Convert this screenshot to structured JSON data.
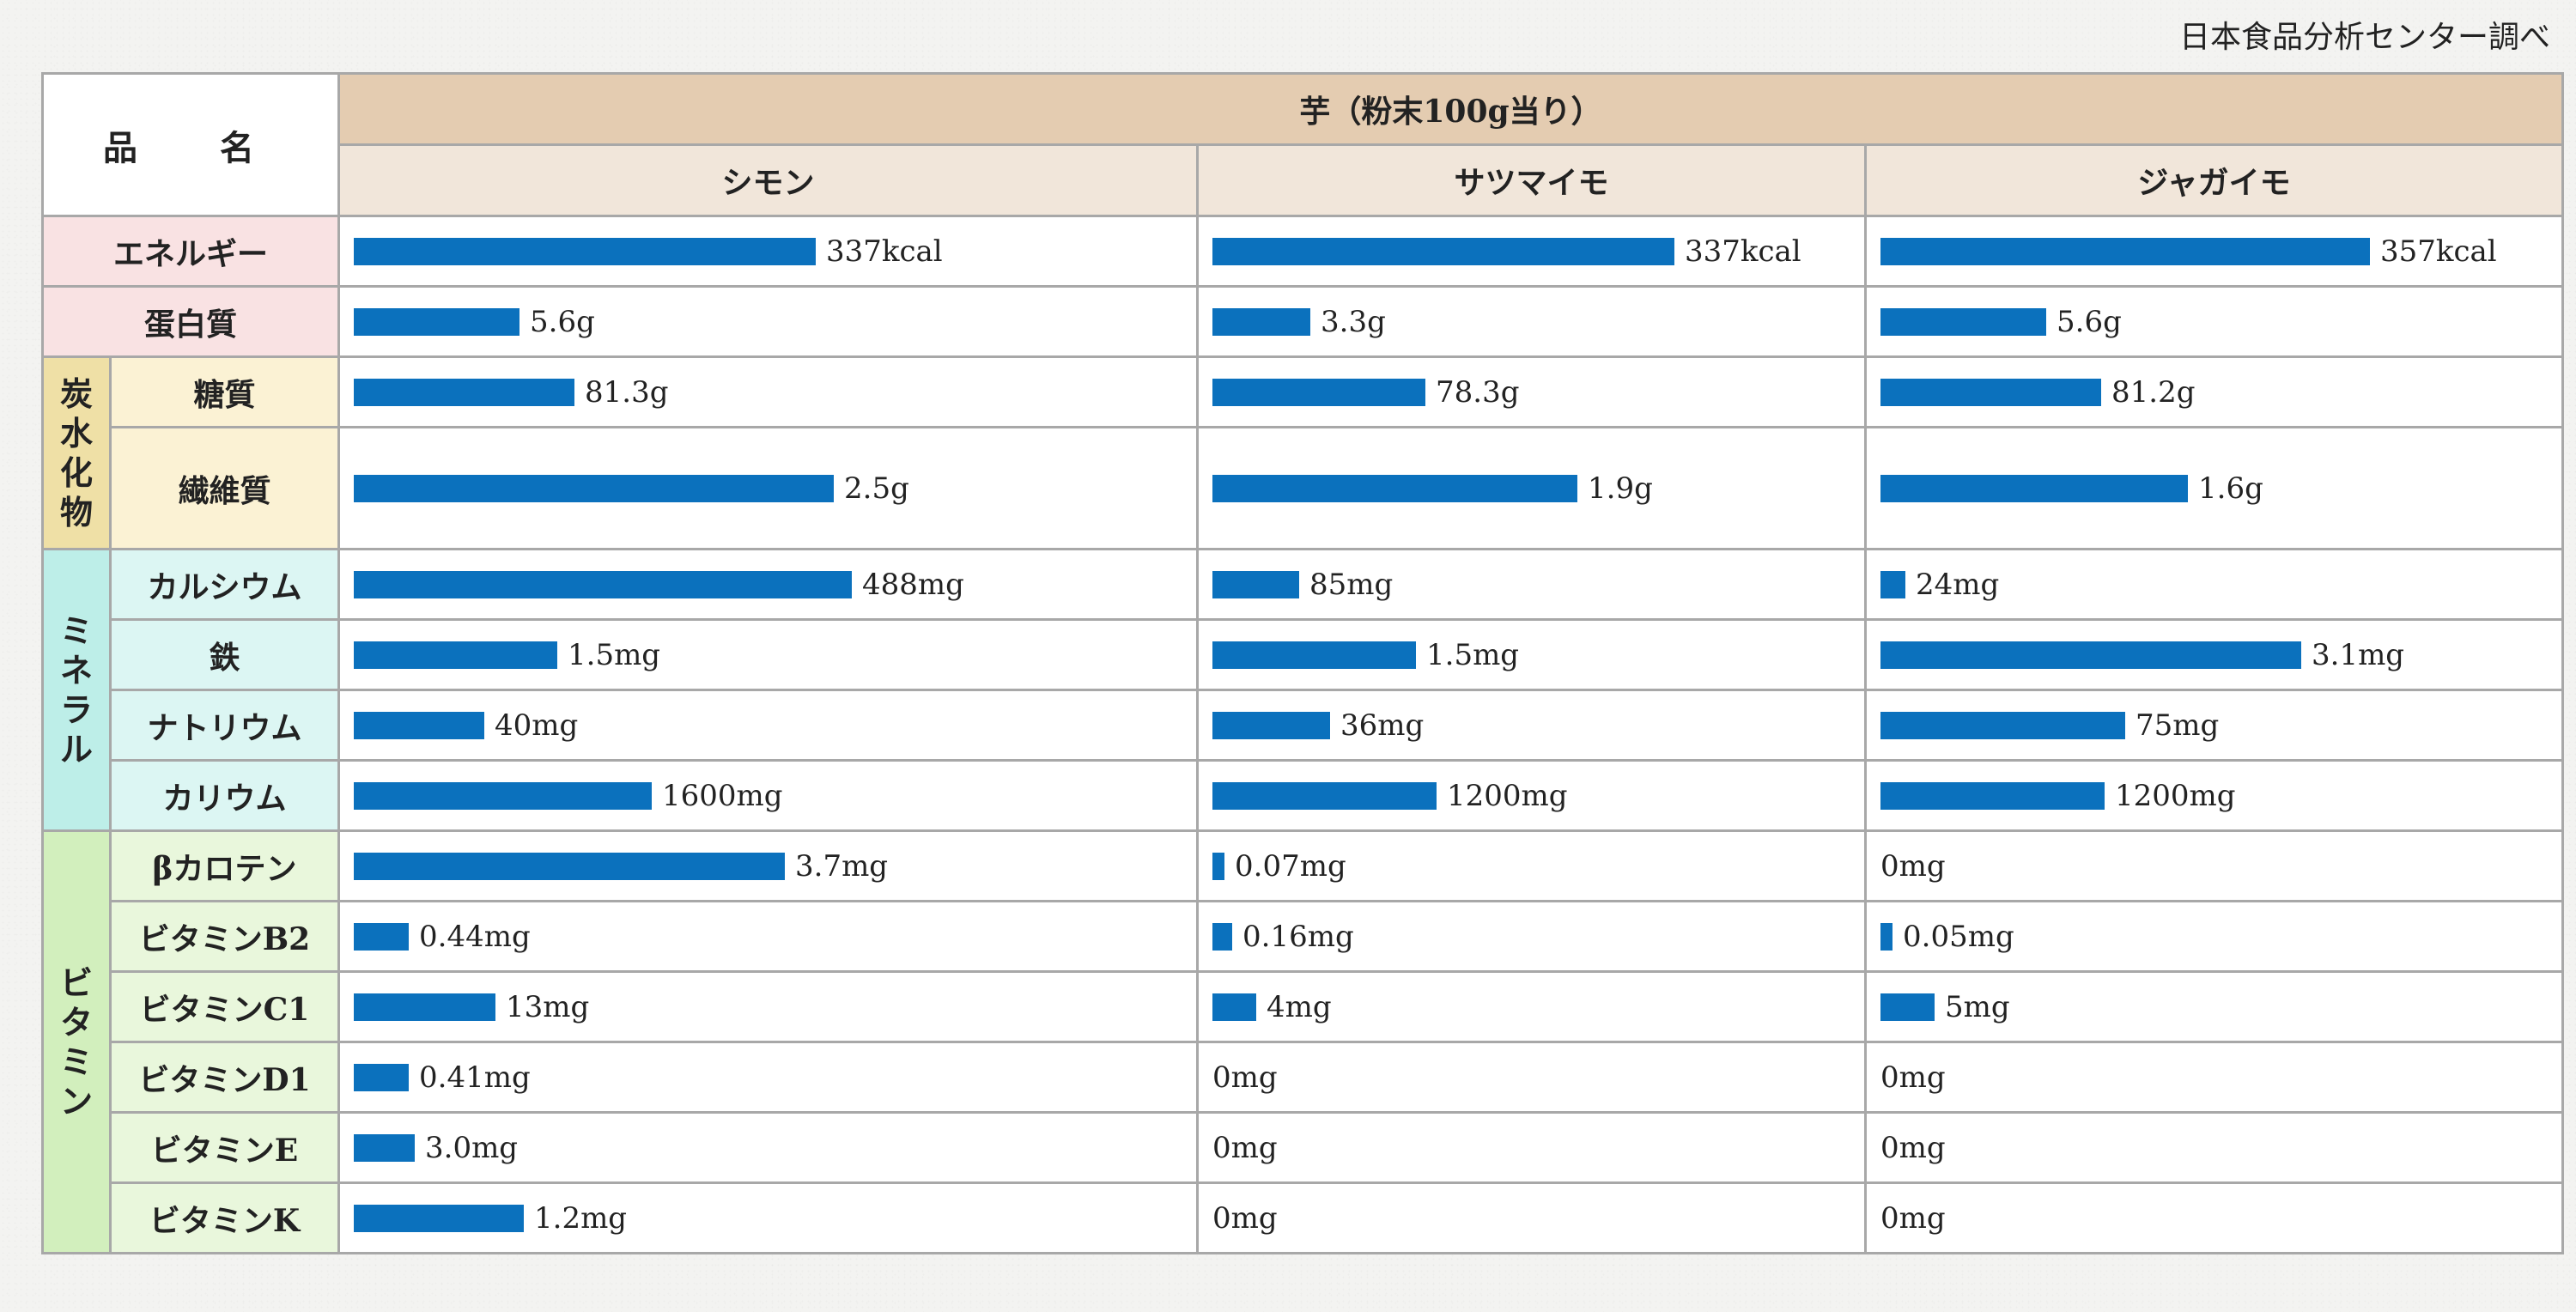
{
  "source_note": "日本食品分析センター調べ",
  "header": {
    "item_label": "品　名",
    "main_label": "芋（粉末100g当り）"
  },
  "colors": {
    "bar": "#0b71bd",
    "header_main": "#e4ccb1",
    "header_sub": "#f1e6da",
    "pink": "#f9e2e3",
    "yellow": "#fbf2d4",
    "cyan": "#dcf6f3",
    "green": "#e9f7dc"
  },
  "chart_data": {
    "type": "bar",
    "title": "芋（粉末100g当り）",
    "series": [
      {
        "name": "シモン"
      },
      {
        "name": "サツマイモ"
      },
      {
        "name": "ジャガイモ"
      }
    ],
    "groups": [
      {
        "name": "",
        "color": "pink",
        "rows": [
          {
            "label": "エネルギー",
            "values": [
              337,
              337,
              357
            ],
            "texts": [
              "337kcal",
              "337kcal",
              "357kcal"
            ]
          },
          {
            "label": "蛋白質",
            "values": [
              5.6,
              3.3,
              5.6
            ],
            "texts": [
              "5.6g",
              "3.3g",
              "5.6g"
            ]
          }
        ]
      },
      {
        "name": "炭水化物",
        "color": "yellow",
        "rows": [
          {
            "label": "糖質",
            "values": [
              81.3,
              78.3,
              81.2
            ],
            "texts": [
              "81.3g",
              "78.3g",
              "81.2g"
            ]
          },
          {
            "label": "繊維質",
            "values": [
              2.5,
              1.9,
              1.6
            ],
            "texts": [
              "2.5g",
              "1.9g",
              "1.6g"
            ]
          }
        ]
      },
      {
        "name": "ミネラル",
        "color": "cyan",
        "rows": [
          {
            "label": "カルシウム",
            "values": [
              488,
              85,
              24
            ],
            "texts": [
              "488mg",
              "85mg",
              "24mg"
            ]
          },
          {
            "label": "鉄",
            "values": [
              1.5,
              1.5,
              3.1
            ],
            "texts": [
              "1.5mg",
              "1.5mg",
              "3.1mg"
            ]
          },
          {
            "label": "ナトリウム",
            "values": [
              40,
              36,
              75
            ],
            "texts": [
              "40mg",
              "36mg",
              "75mg"
            ]
          },
          {
            "label": "カリウム",
            "values": [
              1600,
              1200,
              1200
            ],
            "texts": [
              "1600mg",
              "1200mg",
              "1200mg"
            ]
          }
        ]
      },
      {
        "name": "ビタミン",
        "color": "green",
        "rows": [
          {
            "label": "βカロテン",
            "values": [
              3.7,
              0.07,
              0
            ],
            "texts": [
              "3.7mg",
              "0.07mg",
              "0mg"
            ]
          },
          {
            "label": "ビタミンB2",
            "values": [
              0.44,
              0.16,
              0.05
            ],
            "texts": [
              "0.44mg",
              "0.16mg",
              "0.05mg"
            ]
          },
          {
            "label": "ビタミンC1",
            "values": [
              13,
              4,
              5
            ],
            "texts": [
              "13mg",
              "4mg",
              "5mg"
            ]
          },
          {
            "label": "ビタミンD1",
            "values": [
              0.41,
              0,
              0
            ],
            "texts": [
              "0.41mg",
              "0mg",
              "0mg"
            ]
          },
          {
            "label": "ビタミンE",
            "values": [
              3.0,
              0,
              0
            ],
            "texts": [
              "3.0mg",
              "0mg",
              "0mg"
            ]
          },
          {
            "label": "ビタミンK",
            "values": [
              1.2,
              0,
              0
            ],
            "texts": [
              "1.2mg",
              "0mg",
              "0mg"
            ]
          }
        ]
      }
    ]
  }
}
